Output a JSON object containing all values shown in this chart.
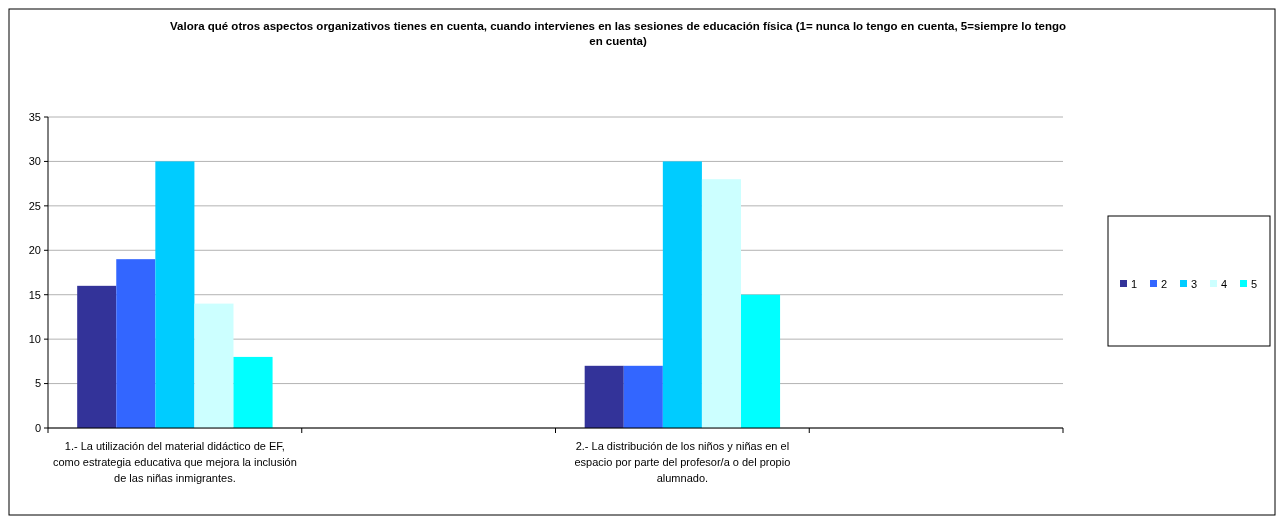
{
  "chart_data": {
    "type": "bar",
    "title": "Valora qué otros aspectos organizativos tienes en cuenta, cuando intervienes en las sesiones de educación física (1= nunca lo tengo en cuenta, 5=siempre lo tengo en cuenta)",
    "categories": [
      "1.- La utilización  del material didáctico de EF, como estrategia educativa que mejora la inclusión de las niñas inmigrantes.",
      null,
      "2.- La distribución de los niños y niñas en el espacio por parte del profesor/a o del propio alumnado.",
      null
    ],
    "series": [
      {
        "name": "1",
        "color": "#333399",
        "values": [
          16,
          null,
          7,
          null
        ]
      },
      {
        "name": "2",
        "color": "#3366ff",
        "values": [
          19,
          null,
          7,
          null
        ]
      },
      {
        "name": "3",
        "color": "#00ccff",
        "values": [
          30,
          null,
          30,
          null
        ]
      },
      {
        "name": "4",
        "color": "#ccffff",
        "values": [
          14,
          null,
          28,
          null
        ]
      },
      {
        "name": "5",
        "color": "#00ffff",
        "values": [
          8,
          null,
          15,
          null
        ]
      }
    ],
    "ylim": [
      0,
      35
    ],
    "yticks": [
      0,
      5,
      10,
      15,
      20,
      25,
      30,
      35
    ],
    "grid": "y",
    "legend": "right"
  }
}
